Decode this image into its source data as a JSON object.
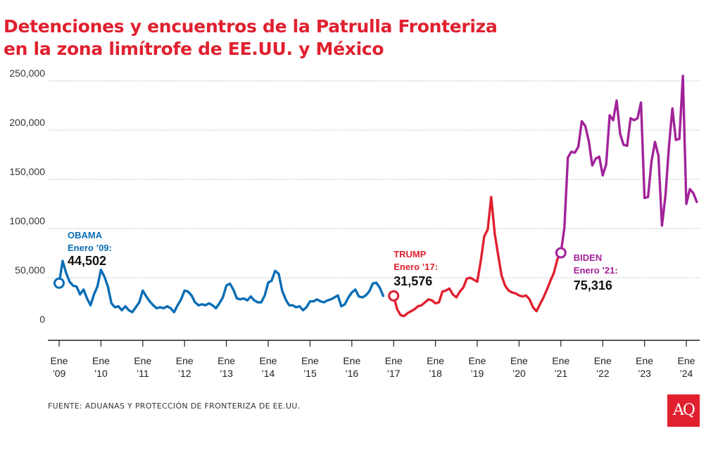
{
  "title_lines": [
    "Detenciones y encuentros de la Patrulla Fronteriza",
    "en la zona limítrofe de EE.UU. y México"
  ],
  "source": "FUENTE: ADUANAS Y PROTECCIÓN DE FRONTERIZA DE EE.UU.",
  "logo": "AQ",
  "colors": {
    "obama": "#0a6db5",
    "trump": "#e0202f",
    "biden": "#a2229a",
    "title": "#e0202f"
  },
  "chart_data": {
    "type": "line",
    "title": "Detenciones y encuentros de la Patrulla Fronteriza en la zona limítrofe de EE.UU. y México",
    "ylim": [
      0,
      250000
    ],
    "yticks": [
      {
        "value": 0,
        "label": "0"
      },
      {
        "value": 50000,
        "label": "50,000"
      },
      {
        "value": 100000,
        "label": "100,000"
      },
      {
        "value": 150000,
        "label": "150,000"
      },
      {
        "value": 200000,
        "label": "200,000"
      },
      {
        "value": 250000,
        "label": "250,000"
      }
    ],
    "xticks": [
      {
        "date": "2009-01",
        "line1": "Ene",
        "line2": "’09"
      },
      {
        "date": "2010-01",
        "line1": "Ene",
        "line2": "’10"
      },
      {
        "date": "2011-01",
        "line1": "Ene",
        "line2": "’11"
      },
      {
        "date": "2012-01",
        "line1": "Ene",
        "line2": "’12"
      },
      {
        "date": "2013-01",
        "line1": "Ene",
        "line2": "’13"
      },
      {
        "date": "2014-01",
        "line1": "Ene",
        "line2": "’14"
      },
      {
        "date": "2015-01",
        "line1": "Ene",
        "line2": "’15"
      },
      {
        "date": "2016-01",
        "line1": "Ene",
        "line2": "’16"
      },
      {
        "date": "2017-01",
        "line1": "Ene",
        "line2": "’17"
      },
      {
        "date": "2018-01",
        "line1": "Ene",
        "line2": "’18"
      },
      {
        "date": "2019-01",
        "line1": "Ene",
        "line2": "’19"
      },
      {
        "date": "2020-01",
        "line1": "Ene",
        "line2": "’20"
      },
      {
        "date": "2021-01",
        "line1": "Ene",
        "line2": "’21"
      },
      {
        "date": "2022-01",
        "line1": "Ene",
        "line2": "’22"
      },
      {
        "date": "2023-01",
        "line1": "Ene",
        "line2": "’23"
      },
      {
        "date": "2024-01",
        "line1": "Ene",
        "line2": "’24"
      }
    ],
    "series": [
      {
        "key": "obama",
        "start": "2009-01",
        "values": [
          44502,
          67000,
          55000,
          46000,
          42000,
          41000,
          33000,
          38000,
          29000,
          22000,
          33000,
          41000,
          58000,
          51000,
          41000,
          24000,
          20000,
          21000,
          17000,
          21000,
          17000,
          15000,
          20000,
          25000,
          37000,
          31000,
          26000,
          22000,
          19000,
          20000,
          19000,
          21000,
          19000,
          15000,
          22000,
          28000,
          37000,
          36000,
          32000,
          25000,
          22000,
          23000,
          22000,
          24000,
          22000,
          19000,
          24000,
          30000,
          42000,
          44000,
          38000,
          29000,
          28000,
          29000,
          27000,
          31000,
          27000,
          25000,
          25000,
          32000,
          45000,
          47000,
          57000,
          54000,
          37000,
          28000,
          22000,
          22000,
          20000,
          21000,
          17000,
          20000,
          26000,
          26000,
          28000,
          26000,
          25000,
          27000,
          28000,
          30000,
          32000,
          21000,
          23000,
          30000,
          35000,
          38000,
          31000,
          30000,
          32000,
          36000,
          44000,
          45000,
          40000,
          31576
        ]
      },
      {
        "key": "trump",
        "start": "2017-01",
        "values": [
          31576,
          18000,
          12000,
          11000,
          14000,
          16000,
          18000,
          21000,
          22000,
          25000,
          28000,
          27000,
          24000,
          25000,
          36000,
          37000,
          39000,
          33000,
          30000,
          36000,
          40000,
          49000,
          50000,
          48000,
          46000,
          67000,
          92000,
          99000,
          132000,
          95000,
          73000,
          52000,
          42000,
          37000,
          35000,
          34000,
          32000,
          31000,
          32000,
          28000,
          20000,
          16000,
          23000,
          30000,
          38000,
          47000,
          55000,
          69000,
          75316
        ]
      },
      {
        "key": "biden",
        "start": "2021-01",
        "values": [
          75316,
          101000,
          172000,
          178000,
          177000,
          183000,
          209000,
          204000,
          189000,
          164000,
          171000,
          173000,
          154000,
          165000,
          215000,
          210000,
          230000,
          196000,
          185000,
          184000,
          212000,
          210000,
          212000,
          228000,
          131000,
          132000,
          168000,
          188000,
          174000,
          103000,
          133000,
          183000,
          222000,
          190000,
          191000,
          255000,
          125000,
          140000,
          136000,
          127000
        ]
      }
    ],
    "annotations": [
      {
        "key": "obama",
        "date": "2009-01",
        "value": 44502,
        "label": "OBAMA",
        "sublabel": "Enero ’09:",
        "value_text": "44,502"
      },
      {
        "key": "trump",
        "date": "2017-01",
        "value": 31576,
        "label": "TRUMP",
        "sublabel": "Enero ’17:",
        "value_text": "31,576"
      },
      {
        "key": "biden",
        "date": "2021-01",
        "value": 75316,
        "label": "BIDEN",
        "sublabel": "Enero ’21:",
        "value_text": "75,316"
      }
    ]
  }
}
